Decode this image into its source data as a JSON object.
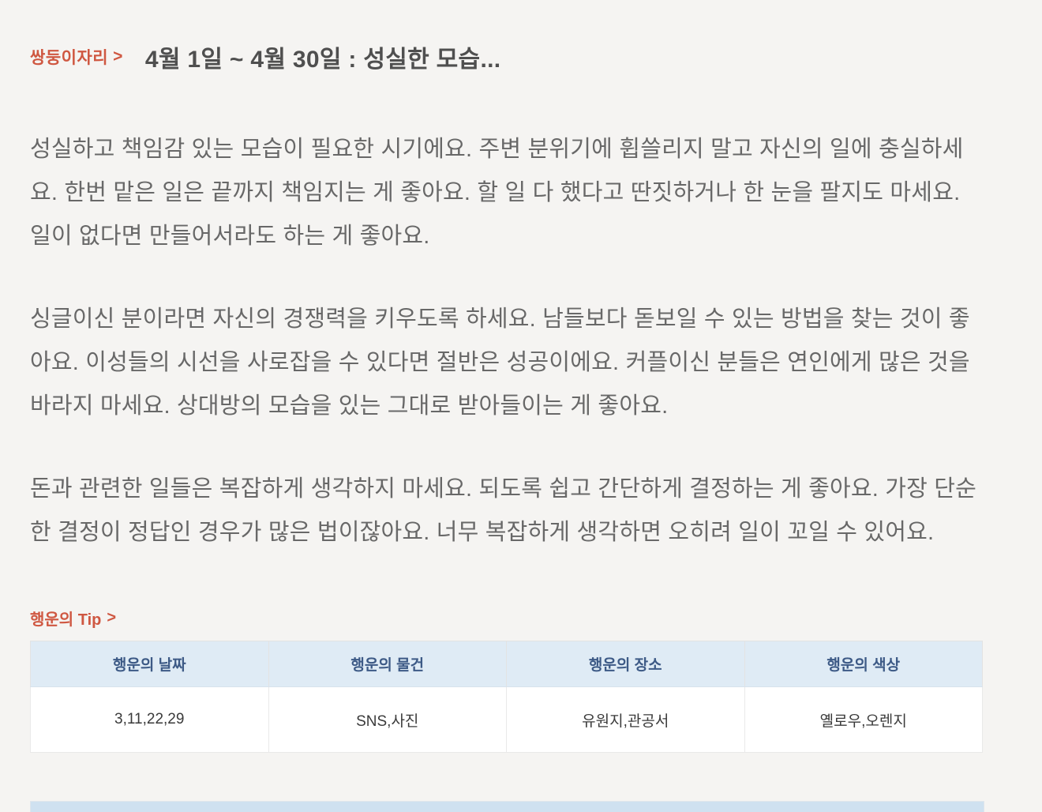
{
  "page": {
    "background_color": "#f5f4f2",
    "accent_color": "#cf5741"
  },
  "header": {
    "zodiac_label": "쌍둥이자리",
    "zodiac_arrow": ">",
    "title": "4월 1일 ~ 4월 30일 : 성실한 모습..."
  },
  "paragraphs": [
    "성실하고 책임감 있는 모습이 필요한 시기에요. 주변 분위기에 휩쓸리지 말고 자신의 일에 충실하세요. 한번 맡은 일은 끝까지 책임지는 게 좋아요. 할 일 다 했다고 딴짓하거나 한 눈을 팔지도 마세요. 일이 없다면 만들어서라도 하는 게 좋아요.",
    "싱글이신 분이라면 자신의 경쟁력을 키우도록 하세요. 남들보다 돋보일 수 있는 방법을 찾는 것이 좋아요. 이성들의 시선을 사로잡을 수 있다면 절반은 성공이에요. 커플이신 분들은 연인에게 많은 것을 바라지 마세요. 상대방의 모습을 있는 그대로 받아들이는 게 좋아요.",
    "돈과 관련한 일들은 복잡하게 생각하지 마세요. 되도록 쉽고 간단하게 결정하는 게 좋아요. 가장 단순한 결정이 정답인 경우가 많은 법이잖아요. 너무 복잡하게 생각하면 오히려 일이 꼬일 수 있어요."
  ],
  "lucky_tip": {
    "heading": "행운의 Tip",
    "arrow": ">",
    "table": {
      "header_bg_color": "#dfebf5",
      "header_text_color": "#3d5a86",
      "headers": [
        "행운의 날짜",
        "행운의 물건",
        "행운의 장소",
        "행운의 색상"
      ],
      "values": [
        "3,11,22,29",
        "SNS,사진",
        "유원지,관공서",
        "옐로우,오렌지"
      ]
    }
  }
}
